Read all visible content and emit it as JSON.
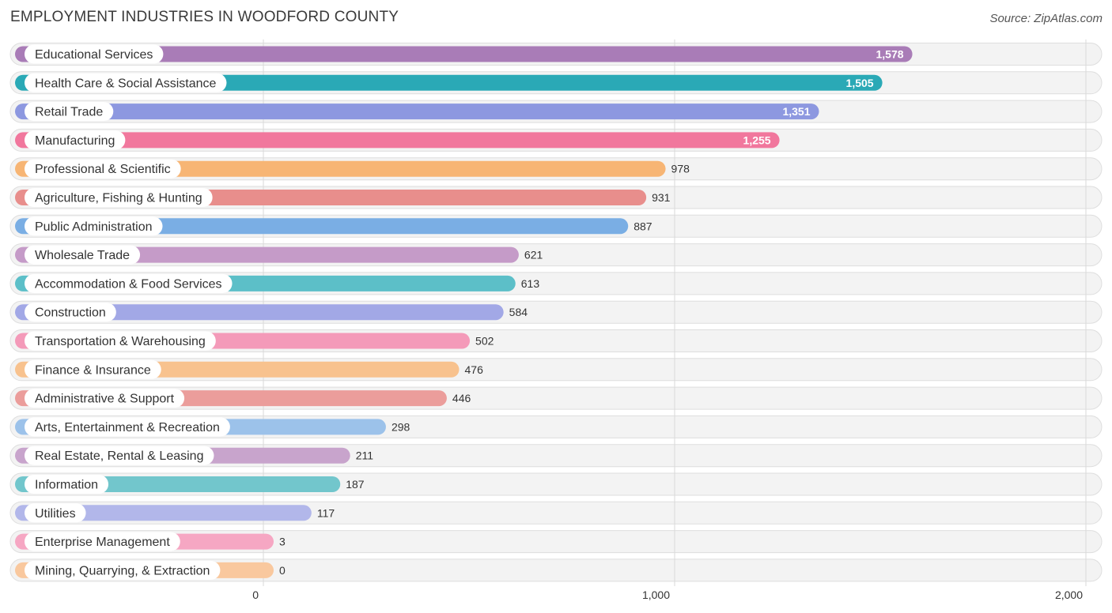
{
  "title": "EMPLOYMENT INDUSTRIES IN WOODFORD COUNTY",
  "source": "Source: ZipAtlas.com",
  "chart_data": {
    "type": "bar",
    "orientation": "horizontal",
    "title": "EMPLOYMENT INDUSTRIES IN WOODFORD COUNTY",
    "xlim": [
      0,
      2000
    ],
    "ticks": [
      0,
      1000,
      2000
    ],
    "tick_labels": [
      "0",
      "1,000",
      "2,000"
    ],
    "categories": [
      "Educational Services",
      "Health Care & Social Assistance",
      "Retail Trade",
      "Manufacturing",
      "Professional & Scientific",
      "Agriculture, Fishing & Hunting",
      "Public Administration",
      "Wholesale Trade",
      "Accommodation & Food Services",
      "Construction",
      "Transportation & Warehousing",
      "Finance & Insurance",
      "Administrative & Support",
      "Arts, Entertainment & Recreation",
      "Real Estate, Rental & Leasing",
      "Information",
      "Utilities",
      "Enterprise Management",
      "Mining, Quarrying, & Extraction"
    ],
    "values": [
      1578,
      1505,
      1351,
      1255,
      978,
      931,
      887,
      621,
      613,
      584,
      502,
      476,
      446,
      298,
      211,
      187,
      117,
      3,
      0
    ],
    "value_labels": [
      "1,578",
      "1,505",
      "1,351",
      "1,255",
      "978",
      "931",
      "887",
      "621",
      "613",
      "584",
      "502",
      "476",
      "446",
      "298",
      "211",
      "187",
      "117",
      "3",
      "0"
    ],
    "colors": [
      "#a97cb7",
      "#2aa9b6",
      "#8d98e0",
      "#f1779d",
      "#f7b574",
      "#e88e8c",
      "#7aaee4",
      "#c59bc8",
      "#5cbfc8",
      "#a2a8e6",
      "#f49ab9",
      "#f8c28e",
      "#eb9d9b",
      "#9cc2ea",
      "#c8a4cc",
      "#72c6cc",
      "#b2b7ea",
      "#f6a7c3",
      "#f9c89e"
    ]
  }
}
